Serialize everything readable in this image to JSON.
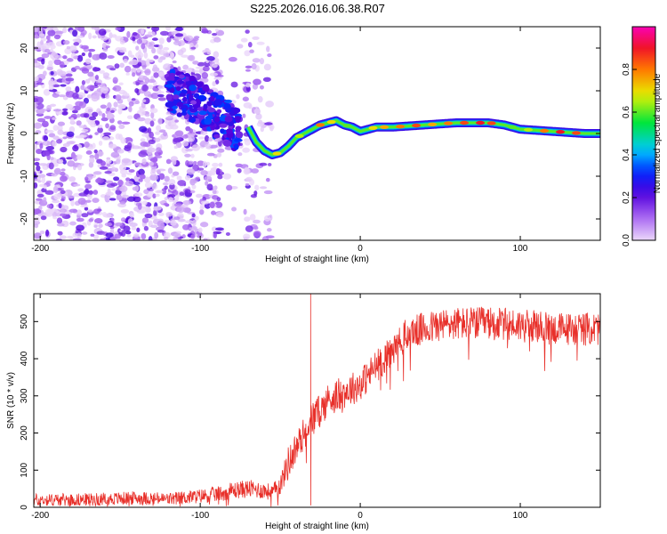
{
  "title": "S225.2026.016.06.38.R07",
  "chart_data": [
    {
      "type": "heatmap",
      "name": "spectrogram",
      "xlabel": "Height of straight line (km)",
      "ylabel": "Frequency (Hz)",
      "xlim": [
        -204,
        150
      ],
      "ylim": [
        -25,
        25
      ],
      "xticks": [
        -200,
        -100,
        0,
        100
      ],
      "yticks": [
        -20,
        -10,
        0,
        10,
        20
      ],
      "ridge": {
        "x": [
          -70,
          -65,
          -60,
          -55,
          -50,
          -45,
          -40,
          -35,
          -30,
          -25,
          -20,
          -15,
          -10,
          -5,
          0,
          5,
          10,
          20,
          40,
          60,
          80,
          90,
          100,
          120,
          140,
          150
        ],
        "y": [
          1.5,
          -2,
          -4,
          -5,
          -4.5,
          -3,
          -1,
          0,
          1,
          2,
          2.5,
          3,
          2,
          1.5,
          0.5,
          1,
          1.5,
          1.5,
          2,
          2.5,
          2.5,
          2,
          1,
          0.5,
          0,
          0
        ]
      },
      "scatter_band": {
        "x": [
          -120,
          -110,
          -100,
          -90,
          -80,
          -75
        ],
        "y": [
          10,
          9,
          7,
          4,
          2,
          0
        ]
      },
      "colorbar": {
        "label": "Normalized spectral amplitude",
        "range": [
          0,
          1
        ],
        "ticks": [
          "0.0",
          "0.2",
          "0.4",
          "0.6",
          "0.8"
        ]
      }
    },
    {
      "type": "line",
      "name": "snr",
      "xlabel": "Height of straight line (km)",
      "ylabel": "SNR (10 * v/v)",
      "xlim": [
        -204,
        150
      ],
      "ylim": [
        0,
        575
      ],
      "xticks": [
        -200,
        -100,
        0,
        100
      ],
      "yticks": [
        0,
        100,
        200,
        300,
        400,
        500
      ],
      "color": "#e8302a",
      "series": [
        {
          "name": "SNR",
          "x": [
            -204,
            -180,
            -160,
            -140,
            -120,
            -100,
            -90,
            -80,
            -70,
            -60,
            -55,
            -50,
            -45,
            -40,
            -35,
            -30,
            -25,
            -20,
            -15,
            -10,
            -5,
            0,
            10,
            20,
            30,
            40,
            50,
            60,
            80,
            100,
            120,
            140,
            150
          ],
          "y": [
            20,
            20,
            22,
            25,
            22,
            30,
            35,
            45,
            50,
            45,
            40,
            60,
            120,
            160,
            200,
            240,
            260,
            290,
            300,
            310,
            320,
            330,
            380,
            420,
            470,
            480,
            490,
            495,
            495,
            490,
            480,
            480,
            480
          ]
        }
      ],
      "spike": {
        "x": -31,
        "y": 575
      }
    }
  ]
}
